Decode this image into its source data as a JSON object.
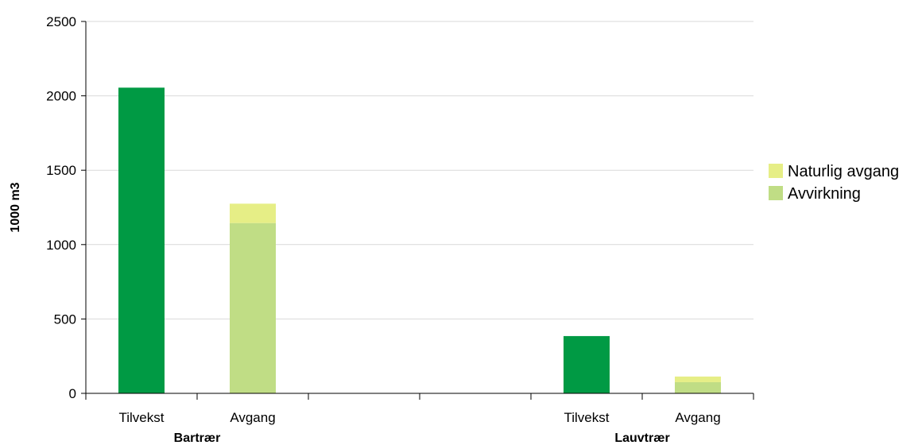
{
  "chart_data": {
    "type": "bar",
    "stacked": true,
    "ylabel": "1000 m3",
    "ylim": [
      0,
      2500
    ],
    "yticks": [
      0,
      500,
      1000,
      1500,
      2000,
      2500
    ],
    "grid": true,
    "legend_position": "right",
    "slots": [
      {
        "label": "Tilvekst",
        "group": "Bartrær"
      },
      {
        "label": "Avgang",
        "group": "Bartrær"
      },
      {
        "label": "",
        "group": ""
      },
      {
        "label": "",
        "group": ""
      },
      {
        "label": "Tilvekst",
        "group": "Lauvtrær"
      },
      {
        "label": "Avgang",
        "group": "Lauvtrær"
      }
    ],
    "groups": [
      "Bartrær",
      "Lauvtrær"
    ],
    "tilvekst": {
      "color": "#009a44",
      "values": [
        2055,
        null,
        null,
        null,
        385,
        null
      ]
    },
    "series": [
      {
        "name": "Avvirkning",
        "color": "#c0dd85",
        "values": [
          null,
          1145,
          null,
          null,
          null,
          75
        ]
      },
      {
        "name": "Naturlig avgang",
        "color": "#e6ee86",
        "values": [
          null,
          130,
          null,
          null,
          null,
          38
        ]
      }
    ],
    "legend": [
      {
        "name": "Naturlig avgang",
        "color": "#e6ee86"
      },
      {
        "name": "Avvirkning",
        "color": "#c0dd85"
      }
    ]
  }
}
